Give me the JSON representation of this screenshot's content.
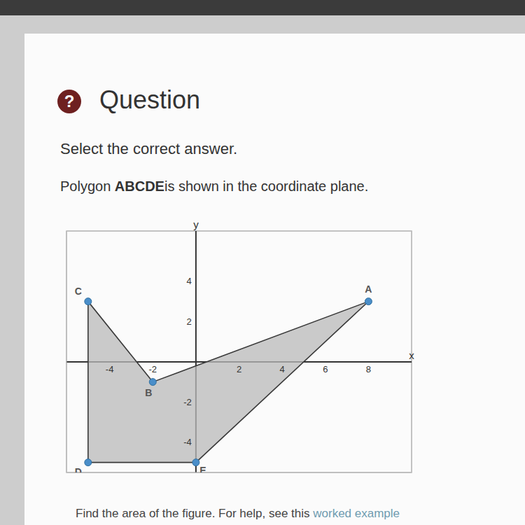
{
  "icon": "?",
  "title": "Question",
  "instruction": "Select the correct answer.",
  "prompt": {
    "before": "Polygon ",
    "name": "ABCDE",
    "after": "is shown in the coordinate plane."
  },
  "chart_data": {
    "type": "polygon",
    "x_label": "x",
    "y_label": "y",
    "points": [
      {
        "label": "A",
        "x": 8,
        "y": 3
      },
      {
        "label": "B",
        "x": -2,
        "y": -1
      },
      {
        "label": "C",
        "x": -5,
        "y": 3
      },
      {
        "label": "D",
        "x": -5,
        "y": -5
      },
      {
        "label": "E",
        "x": 0,
        "y": -5
      }
    ],
    "xlim": [
      -6,
      10
    ],
    "ylim": [
      -5.5,
      6.5
    ],
    "xticks": [
      -4,
      -2,
      2,
      4,
      6,
      8
    ],
    "yticks": [
      -4,
      -2,
      2,
      4
    ],
    "grid": true,
    "color": "#4a8ec9"
  },
  "footer": {
    "text": "Find the area of the figure. For help, see this",
    "link": "worked example"
  }
}
